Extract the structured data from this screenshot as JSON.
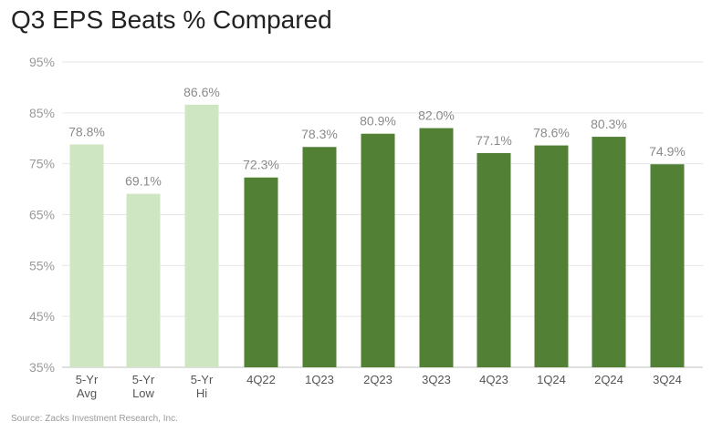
{
  "chart_data": {
    "type": "bar",
    "title": "Q3 EPS Beats % Compared",
    "source": "Source: Zacks Investment Research, Inc.",
    "categories": [
      [
        "5-Yr",
        "Avg"
      ],
      [
        "5-Yr",
        "Low"
      ],
      [
        "5-Yr",
        "Hi"
      ],
      [
        "4Q22"
      ],
      [
        "1Q23"
      ],
      [
        "2Q23"
      ],
      [
        "3Q23"
      ],
      [
        "4Q23"
      ],
      [
        "1Q24"
      ],
      [
        "2Q24"
      ],
      [
        "3Q24"
      ]
    ],
    "values": [
      78.8,
      69.1,
      86.6,
      72.3,
      78.3,
      80.9,
      82.0,
      77.1,
      78.6,
      80.3,
      74.9
    ],
    "value_labels": [
      "78.8%",
      "69.1%",
      "86.6%",
      "72.3%",
      "78.3%",
      "80.9%",
      "82.0%",
      "77.1%",
      "78.6%",
      "80.3%",
      "74.9%"
    ],
    "bar_colors": [
      "#cfe6c2",
      "#cfe6c2",
      "#cfe6c2",
      "#528135",
      "#528135",
      "#528135",
      "#528135",
      "#528135",
      "#528135",
      "#528135",
      "#528135"
    ],
    "ylim": [
      35,
      95
    ],
    "yticks": [
      "35%",
      "45%",
      "55%",
      "65%",
      "75%",
      "85%",
      "95%"
    ],
    "ytick_values": [
      35,
      45,
      55,
      65,
      75,
      85,
      95
    ],
    "grid": true,
    "xlabel": "",
    "ylabel": ""
  }
}
